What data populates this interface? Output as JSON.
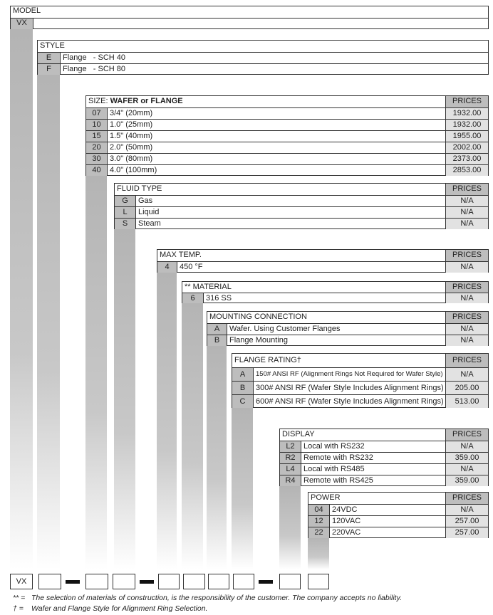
{
  "model": {
    "title": "MODEL",
    "code": "VX"
  },
  "sections": [
    {
      "id": "style",
      "title": "STYLE",
      "prices_label": null,
      "rows": [
        {
          "code": "E",
          "desc": "Flange   - SCH 40"
        },
        {
          "code": "F",
          "desc": "Flange   - SCH 80"
        }
      ]
    },
    {
      "id": "size",
      "title": "SIZE: ",
      "title_bold": "WAFER or FLANGE",
      "prices_label": "PRICES",
      "rows": [
        {
          "code": "07",
          "desc": "3/4\" (20mm)",
          "price": "1932.00"
        },
        {
          "code": "10",
          "desc": "1.0\" (25mm)",
          "price": "1932.00"
        },
        {
          "code": "15",
          "desc": "1.5\" (40mm)",
          "price": "1955.00"
        },
        {
          "code": "20",
          "desc": "2.0\" (50mm)",
          "price": "2002.00"
        },
        {
          "code": "30",
          "desc": "3.0\" (80mm)",
          "price": "2373.00"
        },
        {
          "code": "40",
          "desc": "4.0\" (100mm)",
          "price": "2853.00"
        }
      ]
    },
    {
      "id": "fluid",
      "title": "FLUID TYPE",
      "prices_label": "PRICES",
      "rows": [
        {
          "code": "G",
          "desc": "Gas",
          "price": "N/A"
        },
        {
          "code": "L",
          "desc": "Liquid",
          "price": "N/A"
        },
        {
          "code": "S",
          "desc": "Steam",
          "price": "N/A"
        }
      ]
    },
    {
      "id": "maxtemp",
      "title": "MAX TEMP.",
      "prices_label": "PRICES",
      "rows": [
        {
          "code": "4",
          "desc": "450 °F",
          "price": "N/A"
        }
      ]
    },
    {
      "id": "material",
      "title": "** MATERIAL",
      "prices_label": "PRICES",
      "rows": [
        {
          "code": "6",
          "desc": "316 SS",
          "price": "N/A"
        }
      ]
    },
    {
      "id": "mounting",
      "title": "MOUNTING CONNECTION",
      "prices_label": "PRICES",
      "rows": [
        {
          "code": "A",
          "desc": "Wafer. Using Customer Flanges",
          "price": "N/A"
        },
        {
          "code": "B",
          "desc": "Flange Mounting",
          "price": "N/A"
        }
      ]
    },
    {
      "id": "flange",
      "title": "FLANGE RATING†",
      "prices_label": "PRICES",
      "rows": [
        {
          "code": "A",
          "desc": "150# ANSI RF (Alignment Rings Not Required for Wafer Style)",
          "price": "N/A"
        },
        {
          "code": "B",
          "desc": "300# ANSI RF (Wafer Style Includes Alignment Rings)",
          "price": "205.00"
        },
        {
          "code": "C",
          "desc": "600# ANSI RF (Wafer Style Includes Alignment Rings)",
          "price": "513.00"
        }
      ]
    },
    {
      "id": "display",
      "title": "DISPLAY",
      "prices_label": "PRICES",
      "rows": [
        {
          "code": "L2",
          "desc": "Local with RS232",
          "price": "N/A"
        },
        {
          "code": "R2",
          "desc": "Remote with RS232",
          "price": "359.00"
        },
        {
          "code": "L4",
          "desc": "Local with RS485",
          "price": "N/A"
        },
        {
          "code": "R4",
          "desc": "Remote with RS425",
          "price": "359.00"
        }
      ]
    },
    {
      "id": "power",
      "title": "POWER",
      "prices_label": "PRICES",
      "rows": [
        {
          "code": "04",
          "desc": "24VDC",
          "price": "N/A"
        },
        {
          "code": "12",
          "desc": "120VAC",
          "price": "257.00"
        },
        {
          "code": "22",
          "desc": "220VAC",
          "price": "257.00"
        }
      ]
    }
  ],
  "order_code": {
    "prefix": "VX"
  },
  "footnotes": [
    {
      "mark": "** =",
      "text": "The selection of materials of construction, is the responsibility of the customer. The company accepts no liability."
    },
    {
      "mark": "† =",
      "text": "Wafer and Flange Style for Alignment Ring Selection."
    }
  ]
}
